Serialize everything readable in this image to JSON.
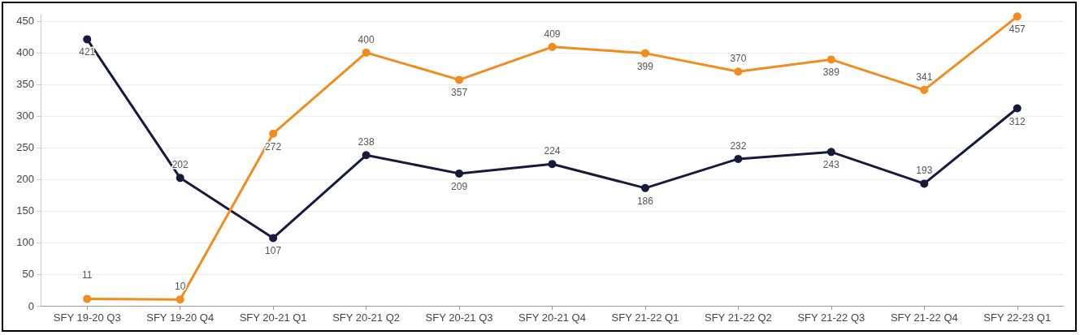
{
  "chart_data": {
    "type": "line",
    "categories": [
      "SFY 19-20 Q3",
      "SFY 19-20 Q4",
      "SFY 20-21 Q1",
      "SFY 20-21 Q2",
      "SFY 20-21 Q3",
      "SFY 20-21 Q4",
      "SFY 21-22 Q1",
      "SFY 21-22 Q2",
      "SFY 21-22 Q3",
      "SFY 21-22 Q4",
      "SFY 22-23 Q1"
    ],
    "series": [
      {
        "color": "#161b3d",
        "values": [
          421,
          202,
          107,
          238,
          209,
          224,
          186,
          232,
          243,
          193,
          312
        ]
      },
      {
        "color": "#f28c1e",
        "values": [
          11,
          10,
          272,
          400,
          357,
          409,
          399,
          370,
          389,
          341,
          457
        ]
      }
    ],
    "ylim": [
      0,
      460
    ],
    "yticks": [
      0,
      50,
      100,
      150,
      200,
      250,
      300,
      350,
      400,
      450
    ],
    "grid": "y",
    "marker": "circle",
    "line_style": "solid",
    "data_labels": true
  }
}
